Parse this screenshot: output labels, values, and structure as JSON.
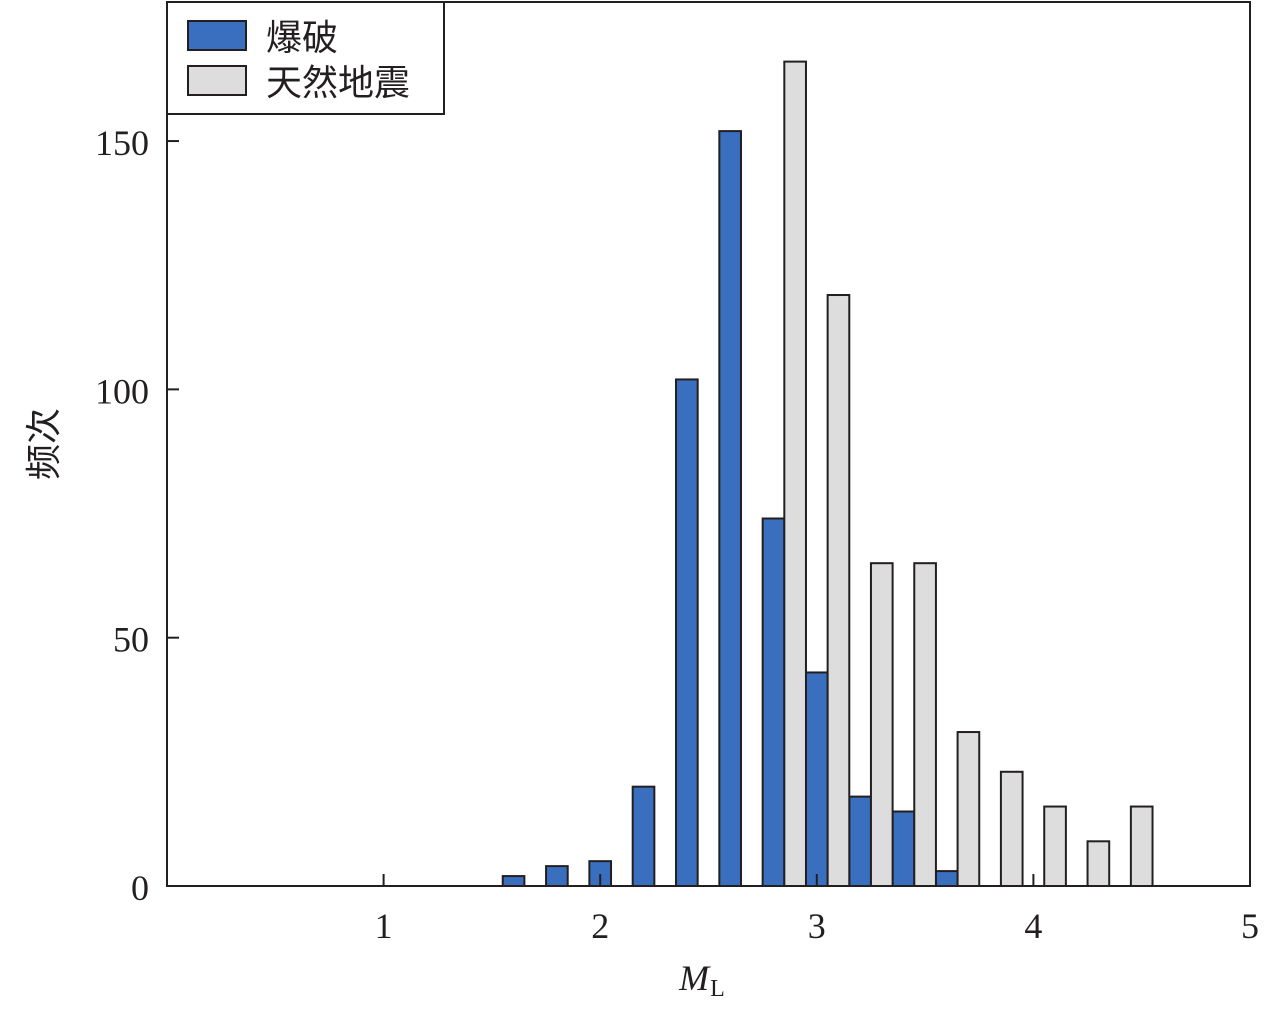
{
  "chart_data": {
    "type": "bar",
    "title": "",
    "xlabel": "M",
    "xlabel_subscript": "L",
    "ylabel": "频次",
    "xlim": [
      0,
      5
    ],
    "ylim": [
      0,
      178
    ],
    "xticks": [
      1,
      2,
      3,
      4,
      5
    ],
    "yticks": [
      0,
      50,
      100,
      150
    ],
    "bin_width": 0.2,
    "grid": false,
    "legend_position": "top-left",
    "series": [
      {
        "name": "爆破",
        "color": "#3a6fbf",
        "x": [
          1.6,
          1.8,
          2.0,
          2.2,
          2.4,
          2.6,
          2.8,
          3.0,
          3.2,
          3.4,
          3.6
        ],
        "values": [
          2,
          4,
          5,
          20,
          102,
          152,
          74,
          43,
          18,
          15,
          3
        ]
      },
      {
        "name": "天然地震",
        "color": "#dddddd",
        "x": [
          2.9,
          3.1,
          3.3,
          3.5,
          3.7,
          3.9,
          4.1,
          4.3,
          4.5
        ],
        "values": [
          166,
          119,
          65,
          65,
          31,
          23,
          16,
          9,
          16
        ]
      }
    ]
  }
}
